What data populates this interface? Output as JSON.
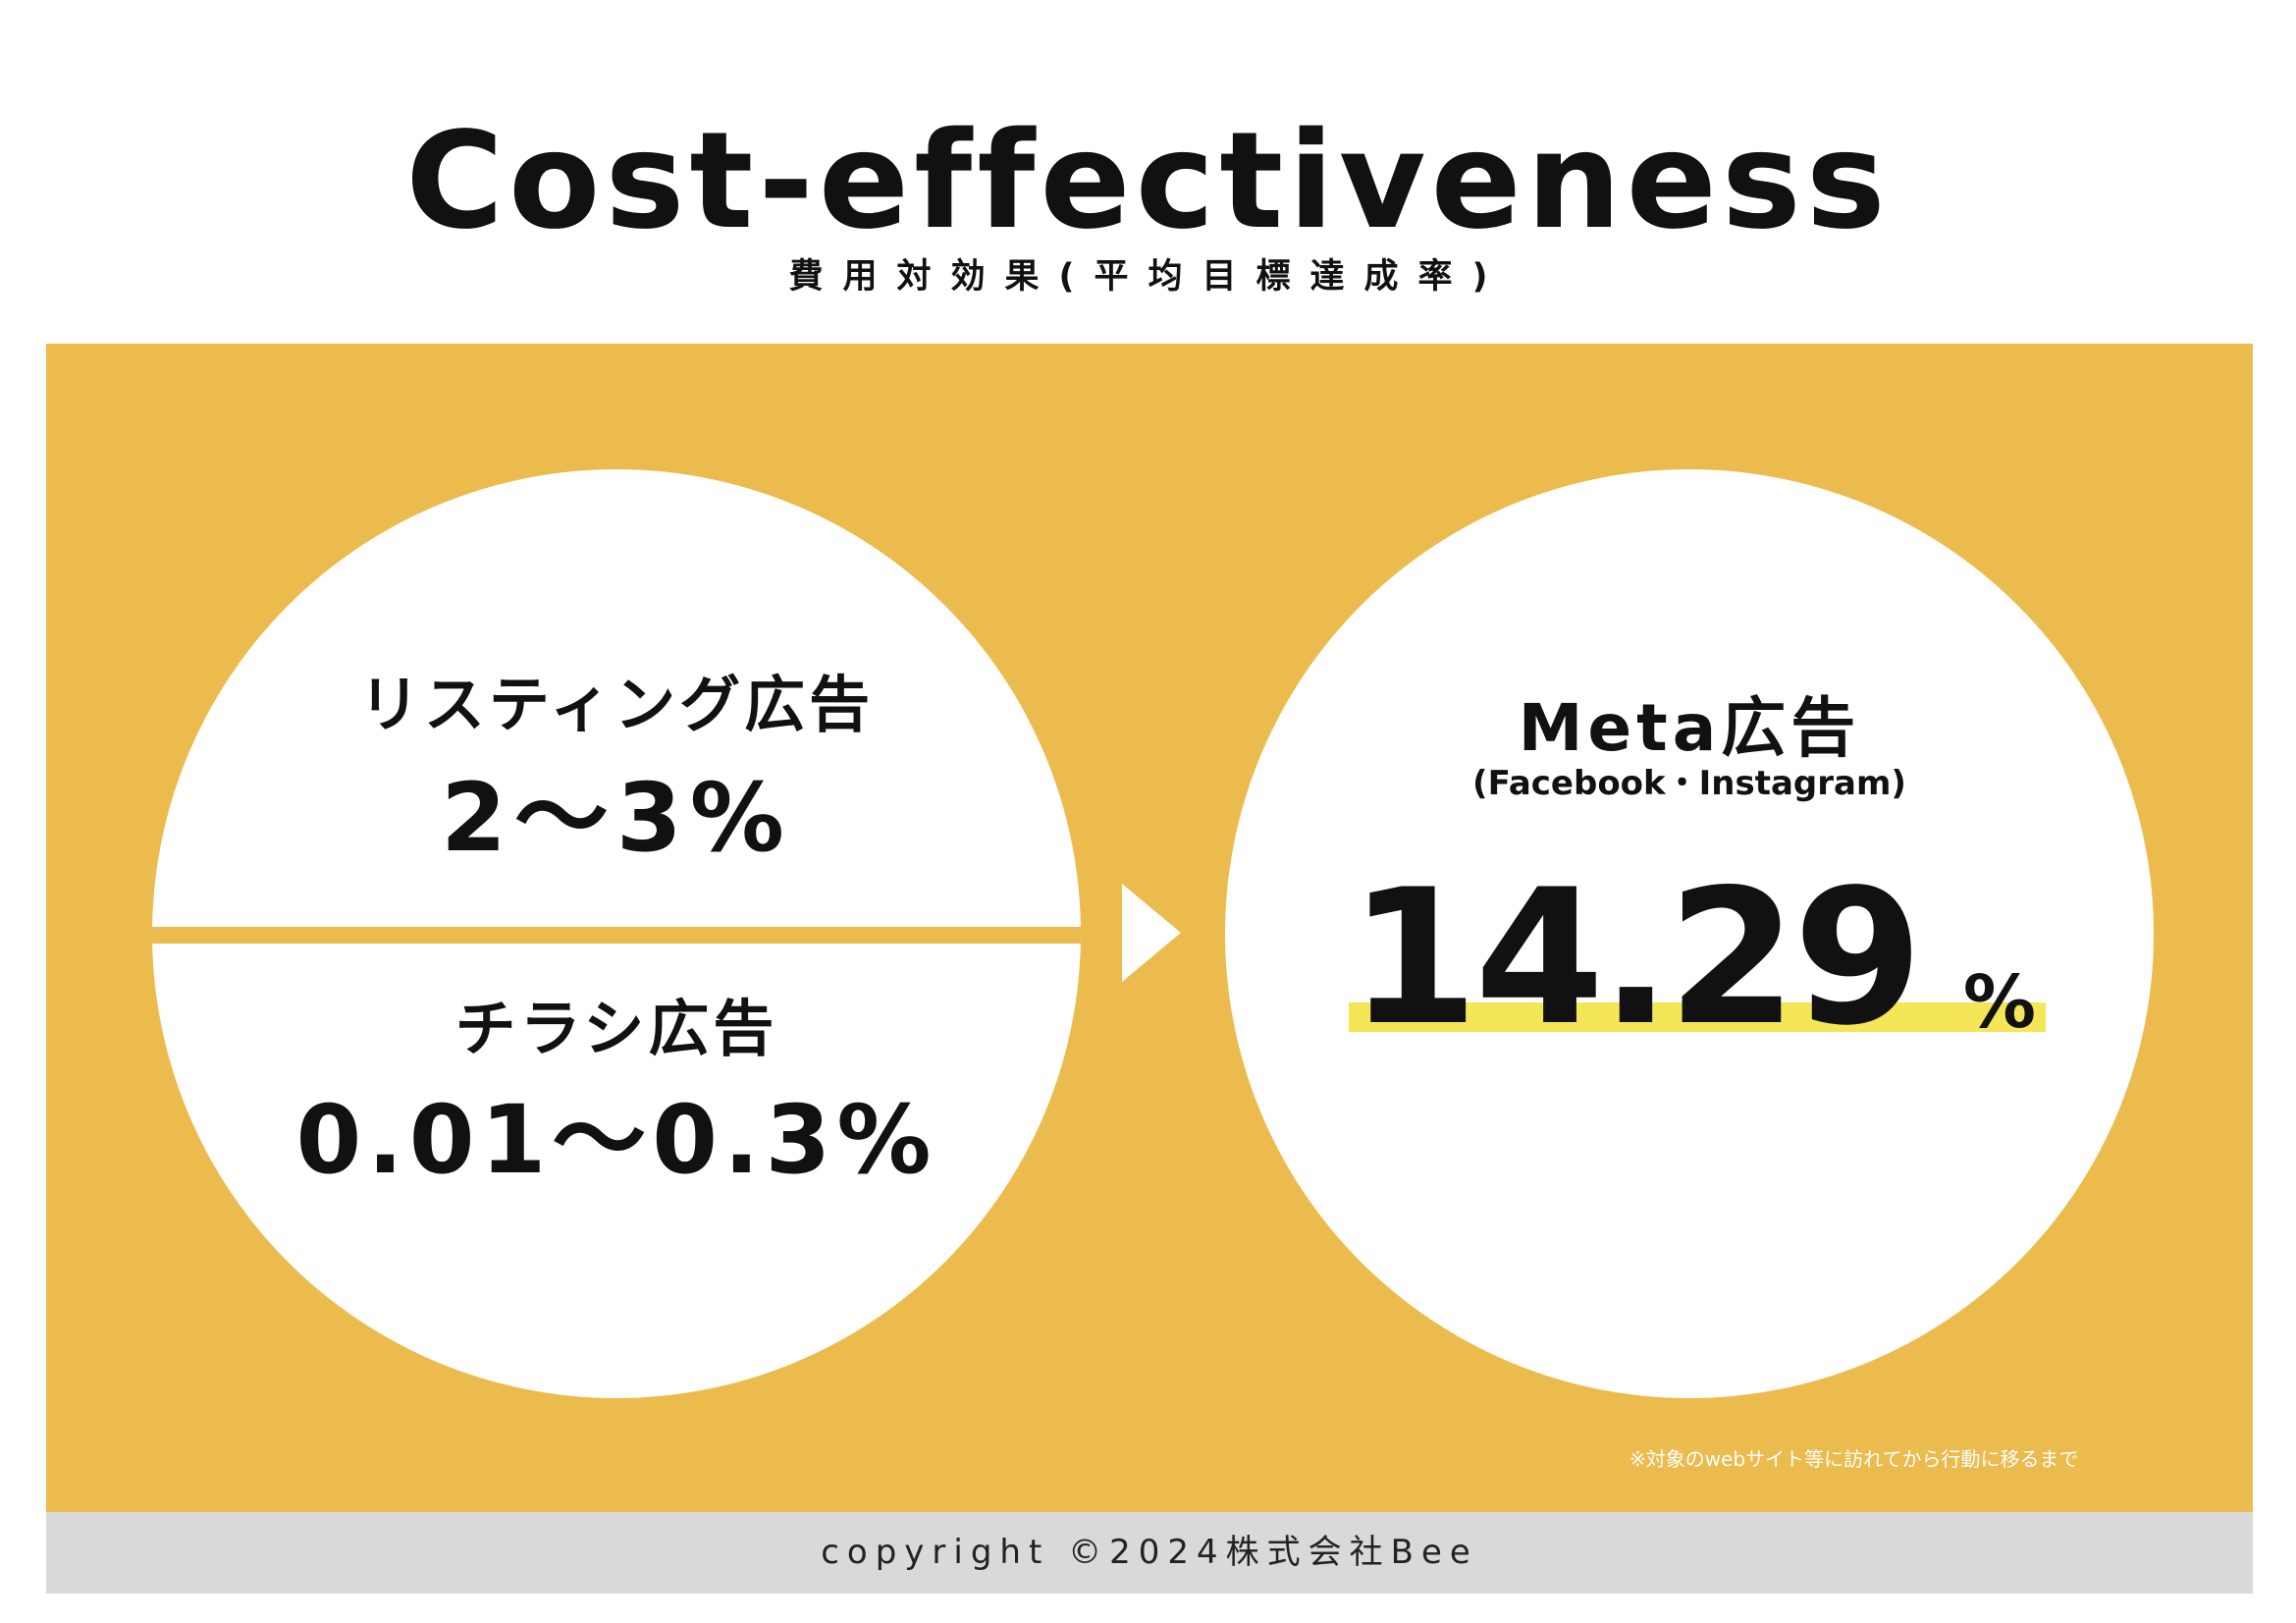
{
  "header": {
    "title": "Cost-effectiveness",
    "subtitle": "費用対効果(平均目標達成率)"
  },
  "left_circle": {
    "top": {
      "label": "リスティング広告",
      "value": "2～3%"
    },
    "bottom": {
      "label": "チラシ広告",
      "value": "0.01～0.3%"
    }
  },
  "right_circle": {
    "label": "Meta広告",
    "sublabel": "(Facebook・Instagram)",
    "value": "14.29",
    "unit": "%"
  },
  "note": "※対象のwebサイト等に訪れてから行動に移るまで",
  "footer": {
    "copyright": "copyright ©2024株式会社Bee"
  },
  "colors": {
    "panel": "#ecbb4d",
    "highlight": "#f4e656",
    "footer": "#d9d9d9"
  }
}
